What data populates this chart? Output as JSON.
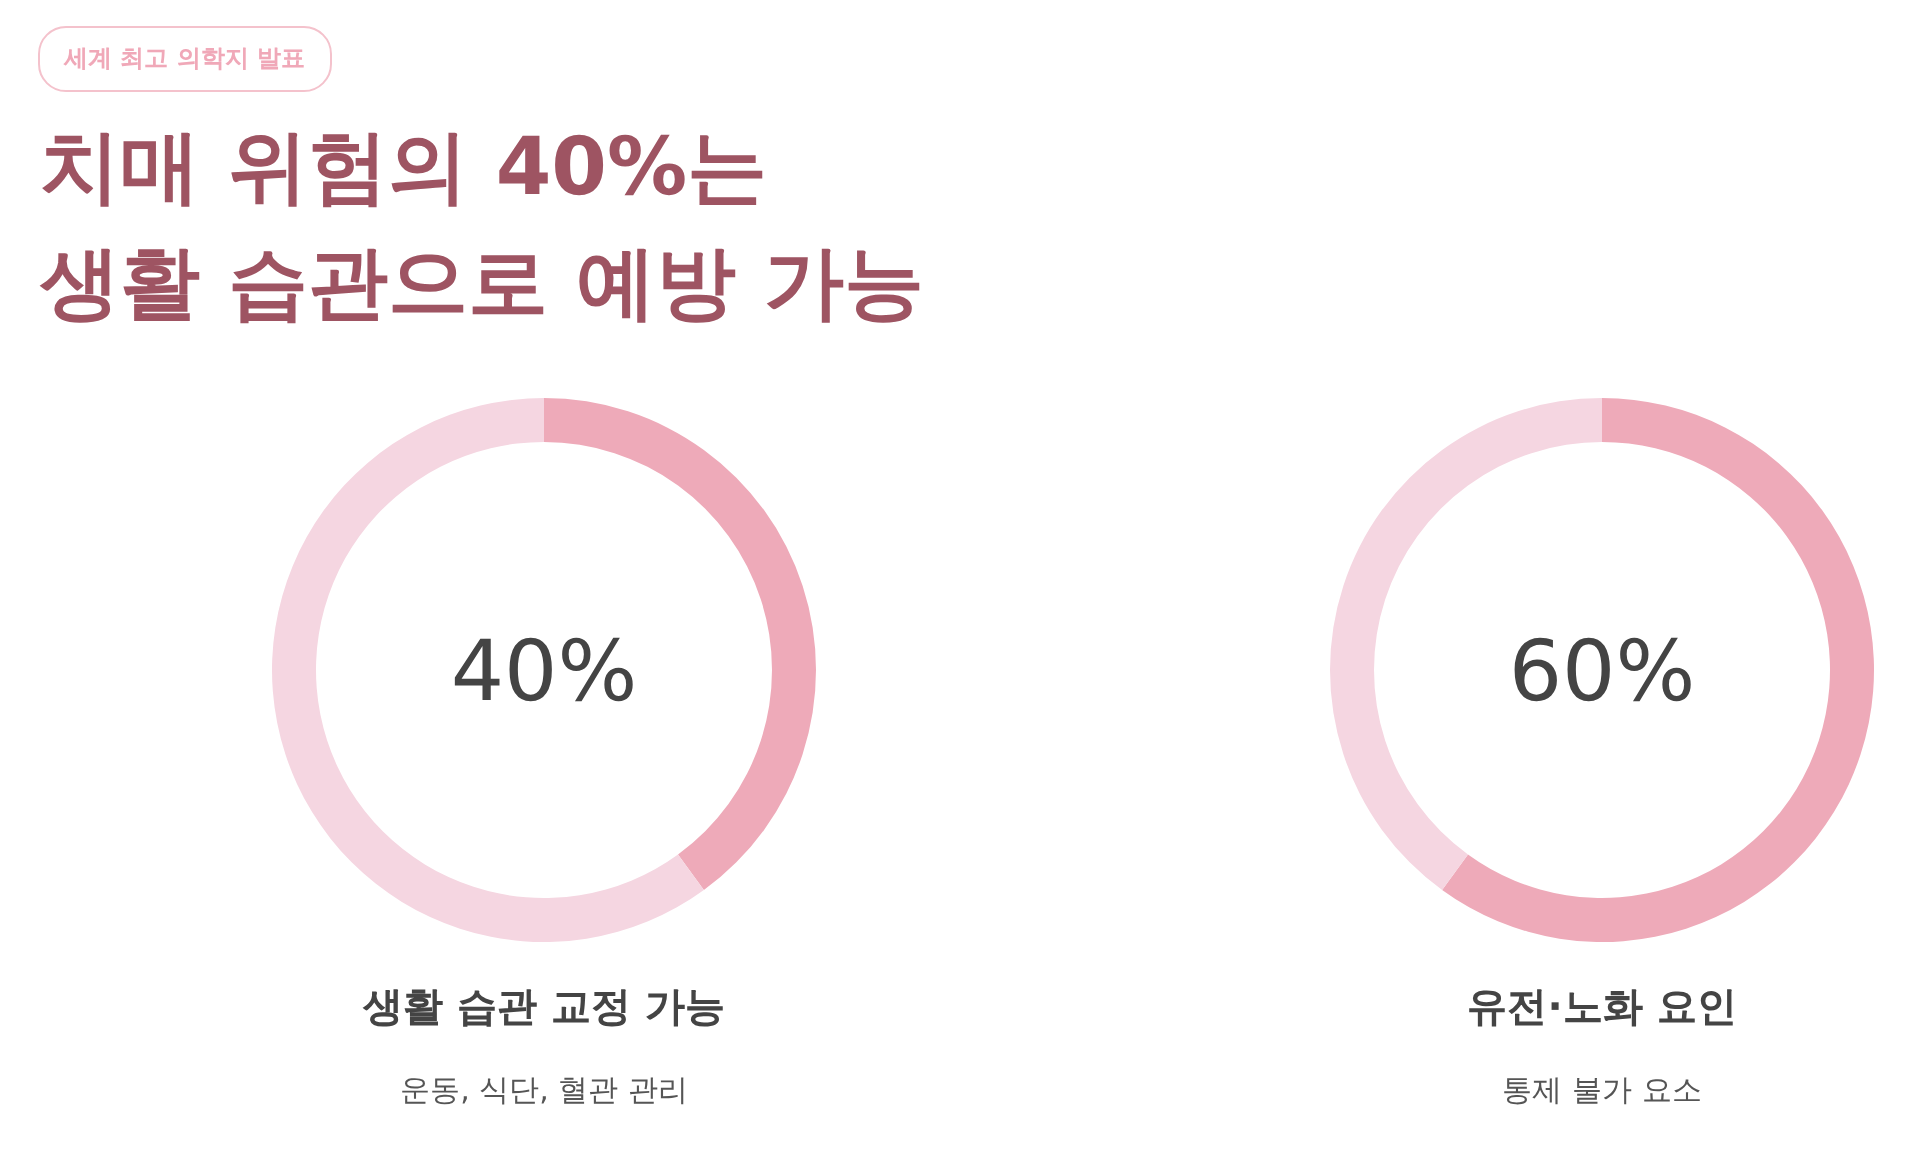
{
  "chart_data": [
    {
      "type": "other",
      "title": "치매 위험의 40%는\n생활 습관으로 예방 가능",
      "annotations": [
        "세계 최고 의학지 발표"
      ]
    },
    {
      "type": "donut",
      "title": "생활 습관 교정 가능",
      "subtitle": "운동, 식단, 혈관 관리",
      "categories": [
        null,
        null
      ],
      "values": [
        40,
        60
      ],
      "colors": [
        "#eeaab9",
        "#f5d6e1"
      ],
      "annotations": [
        "40%"
      ]
    },
    {
      "type": "donut",
      "title": "유전·노화 요인",
      "subtitle": "통제 불가 요소",
      "categories": [
        null,
        null
      ],
      "values": [
        60,
        40
      ],
      "colors": [
        "#eeaab9",
        "#f5d6e1"
      ],
      "annotations": [
        "60%"
      ]
    }
  ]
}
